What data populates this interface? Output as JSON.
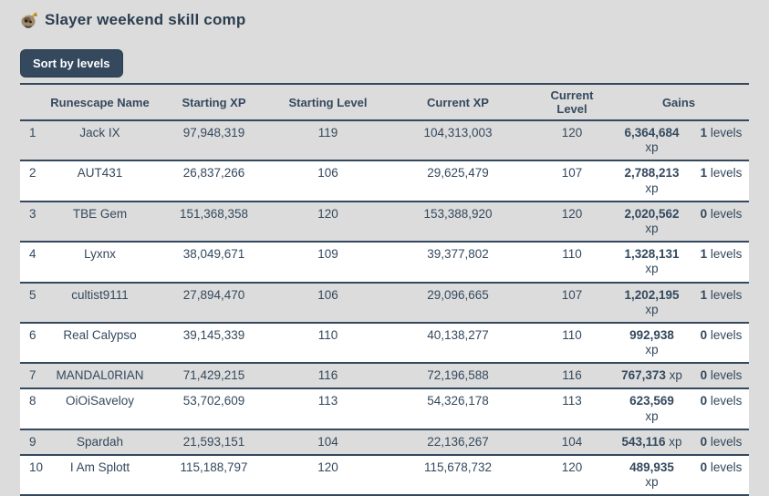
{
  "page": {
    "background_color": "#dcdcdc",
    "accent_color": "#34495e",
    "row_stripe_color": "#ffffff"
  },
  "header": {
    "icon": "slayer-skill-icon",
    "title": "Slayer weekend skill comp"
  },
  "toolbar": {
    "sort_button_label": "Sort by levels"
  },
  "table": {
    "columns": [
      "Runescape Name",
      "Starting XP",
      "Starting Level",
      "Current XP",
      "Current Level",
      "Gains"
    ],
    "rows": [
      {
        "rank": "1",
        "name": "Jack IX",
        "starting_xp": "97,948,319",
        "starting_level": "119",
        "current_xp": "104,313,003",
        "current_level": "120",
        "gains_xp": "6,364,684",
        "gains_xp_unit": "xp",
        "gains_levels": "1",
        "gains_levels_unit": "levels",
        "xp_two_line": true
      },
      {
        "rank": "2",
        "name": "AUT431",
        "starting_xp": "26,837,266",
        "starting_level": "106",
        "current_xp": "29,625,479",
        "current_level": "107",
        "gains_xp": "2,788,213",
        "gains_xp_unit": "xp",
        "gains_levels": "1",
        "gains_levels_unit": "levels",
        "xp_two_line": true
      },
      {
        "rank": "3",
        "name": "TBE Gem",
        "starting_xp": "151,368,358",
        "starting_level": "120",
        "current_xp": "153,388,920",
        "current_level": "120",
        "gains_xp": "2,020,562",
        "gains_xp_unit": "xp",
        "gains_levels": "0",
        "gains_levels_unit": "levels",
        "xp_two_line": true
      },
      {
        "rank": "4",
        "name": "Lyxnx",
        "starting_xp": "38,049,671",
        "starting_level": "109",
        "current_xp": "39,377,802",
        "current_level": "110",
        "gains_xp": "1,328,131",
        "gains_xp_unit": "xp",
        "gains_levels": "1",
        "gains_levels_unit": "levels",
        "xp_two_line": true
      },
      {
        "rank": "5",
        "name": "cultist9111",
        "starting_xp": "27,894,470",
        "starting_level": "106",
        "current_xp": "29,096,665",
        "current_level": "107",
        "gains_xp": "1,202,195",
        "gains_xp_unit": "xp",
        "gains_levels": "1",
        "gains_levels_unit": "levels",
        "xp_two_line": true
      },
      {
        "rank": "6",
        "name": "Real Calypso",
        "starting_xp": "39,145,339",
        "starting_level": "110",
        "current_xp": "40,138,277",
        "current_level": "110",
        "gains_xp": "992,938",
        "gains_xp_unit": "xp",
        "gains_levels": "0",
        "gains_levels_unit": "levels",
        "xp_two_line": true
      },
      {
        "rank": "7",
        "name": "MANDAL0RIAN",
        "starting_xp": "71,429,215",
        "starting_level": "116",
        "current_xp": "72,196,588",
        "current_level": "116",
        "gains_xp": "767,373",
        "gains_xp_unit": "xp",
        "gains_levels": "0",
        "gains_levels_unit": "levels",
        "xp_two_line": false
      },
      {
        "rank": "8",
        "name": "OiOiSaveloy",
        "starting_xp": "53,702,609",
        "starting_level": "113",
        "current_xp": "54,326,178",
        "current_level": "113",
        "gains_xp": "623,569",
        "gains_xp_unit": "xp",
        "gains_levels": "0",
        "gains_levels_unit": "levels",
        "xp_two_line": true
      },
      {
        "rank": "9",
        "name": "Spardah",
        "starting_xp": "21,593,151",
        "starting_level": "104",
        "current_xp": "22,136,267",
        "current_level": "104",
        "gains_xp": "543,116",
        "gains_xp_unit": "xp",
        "gains_levels": "0",
        "gains_levels_unit": "levels",
        "xp_two_line": false
      },
      {
        "rank": "10",
        "name": "I Am Splott",
        "starting_xp": "115,188,797",
        "starting_level": "120",
        "current_xp": "115,678,732",
        "current_level": "120",
        "gains_xp": "489,935",
        "gains_xp_unit": "xp",
        "gains_levels": "0",
        "gains_levels_unit": "levels",
        "xp_two_line": true
      }
    ]
  }
}
